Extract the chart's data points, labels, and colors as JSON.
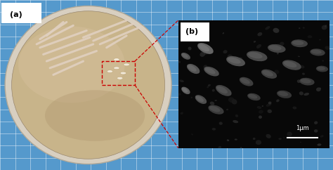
{
  "fig_width": 4.74,
  "fig_height": 2.42,
  "dpi": 100,
  "panel_a_label": "(a)",
  "panel_b_label": "(b)",
  "scale_bar_text": "1μm",
  "fig_bg_color": "#5599cc",
  "grid_line_color": "#ffffff",
  "panel_b_bg_color": "#111111",
  "red_box_color": "#cc0000",
  "n_grid_cols": 22,
  "n_grid_rows": 14,
  "plate_outer_color": "#d8cfc0",
  "plate_outer_edge": "#b0a898",
  "plate_inner_color": "#c8b48a",
  "plate_light_color": "#d4be9a",
  "streak_color": "#e0d0c0",
  "colony_dot_color": "#f0e8d8",
  "scale_bar_color": "#ffffff",
  "sem_bacteria": [
    [
      0.18,
      0.78,
      0.12,
      0.065,
      -35,
      0.72
    ],
    [
      0.1,
      0.62,
      0.1,
      0.058,
      -40,
      0.6
    ],
    [
      0.22,
      0.6,
      0.11,
      0.06,
      -30,
      0.55
    ],
    [
      0.38,
      0.68,
      0.13,
      0.07,
      -20,
      0.58
    ],
    [
      0.52,
      0.72,
      0.14,
      0.075,
      -15,
      0.52
    ],
    [
      0.65,
      0.78,
      0.12,
      0.065,
      -10,
      0.48
    ],
    [
      0.8,
      0.82,
      0.11,
      0.06,
      -5,
      0.45
    ],
    [
      0.92,
      0.75,
      0.1,
      0.055,
      -8,
      0.42
    ],
    [
      0.75,
      0.65,
      0.13,
      0.07,
      -20,
      0.5
    ],
    [
      0.6,
      0.58,
      0.11,
      0.062,
      -25,
      0.46
    ],
    [
      0.45,
      0.52,
      0.1,
      0.058,
      -30,
      0.44
    ],
    [
      0.3,
      0.45,
      0.12,
      0.065,
      -35,
      0.48
    ],
    [
      0.15,
      0.38,
      0.09,
      0.052,
      -40,
      0.55
    ],
    [
      0.05,
      0.45,
      0.07,
      0.042,
      -45,
      0.65
    ],
    [
      0.05,
      0.72,
      0.07,
      0.042,
      -38,
      0.58
    ],
    [
      0.85,
      0.52,
      0.1,
      0.058,
      -10,
      0.4
    ],
    [
      0.95,
      0.62,
      0.08,
      0.048,
      -5,
      0.38
    ],
    [
      0.5,
      0.4,
      0.09,
      0.052,
      -20,
      0.4
    ],
    [
      0.7,
      0.42,
      0.1,
      0.058,
      -15,
      0.38
    ],
    [
      0.25,
      0.3,
      0.11,
      0.062,
      -25,
      0.42
    ]
  ]
}
